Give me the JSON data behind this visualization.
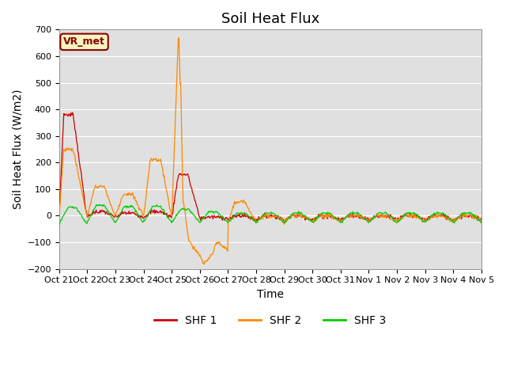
{
  "title": "Soil Heat Flux",
  "ylabel": "Soil Heat Flux (W/m2)",
  "xlabel": "Time",
  "ylim": [
    -200,
    700
  ],
  "yticks": [
    -200,
    -100,
    0,
    100,
    200,
    300,
    400,
    500,
    600,
    700
  ],
  "xtick_labels": [
    "Oct 21",
    "Oct 22",
    "Oct 23",
    "Oct 24",
    "Oct 25",
    "Oct 26",
    "Oct 27",
    "Oct 28",
    "Oct 29",
    "Oct 30",
    "Oct 31",
    "Nov 1",
    "Nov 2",
    "Nov 3",
    "Nov 4",
    "Nov 5"
  ],
  "shf1_color": "#cc0000",
  "shf2_color": "#ff8800",
  "shf3_color": "#00cc00",
  "legend_labels": [
    "SHF 1",
    "SHF 2",
    "SHF 3"
  ],
  "watermark": "VR_met",
  "bg_color": "#e0e0e0",
  "fig_bg_color": "#ffffff",
  "title_fontsize": 13,
  "axis_label_fontsize": 10,
  "tick_fontsize": 8
}
